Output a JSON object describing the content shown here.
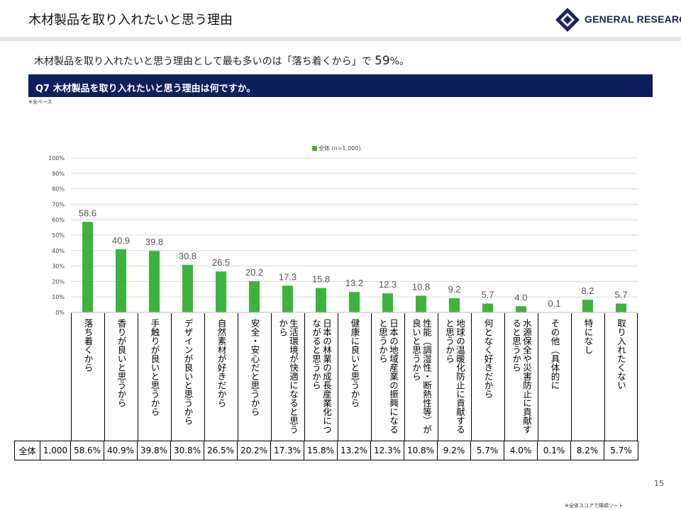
{
  "header": {
    "title": "木材製品を取り入れたいと思う理由",
    "logo_text": "GENERAL RESEARCH"
  },
  "summary": {
    "text_before": "木材製品を取り入れたいと思う理由として最も多いのは「落ち着くから」で",
    "highlight": "59",
    "text_after": "%。"
  },
  "question": "Q7 木材製品を取り入れたいと思う理由は何ですか。",
  "base_note": "※全ベース",
  "legend_label": "全体 (n=1,000)",
  "table": {
    "row_label": "全体",
    "n": "1,000",
    "cells": [
      "58.6%",
      "40.9%",
      "39.8%",
      "30.8%",
      "26.5%",
      "20.2%",
      "17.3%",
      "15.8%",
      "13.2%",
      "12.3%",
      "10.8%",
      "9.2%",
      "5.7%",
      "4.0%",
      "0.1%",
      "8.2%",
      "5.7%"
    ]
  },
  "page_number": "15",
  "footer_note": "※全体スコアで降順ソート",
  "colors": {
    "bar": "#3cb43c",
    "navy": "#0f1f5c",
    "grid": "#d9d9d9"
  },
  "chart_data": {
    "type": "bar",
    "categories": [
      "落ち着くから",
      "香りが良いと思うから",
      "手触りが良いと思うから",
      "デザインが良いと思うから",
      "自然素材が好きだから",
      "安全・安心だと思うから",
      "生活環境が快適になると思うから",
      "日本の林業の成長産業化につながると思うから",
      "健康に良いと思うから",
      "日本の地域産業の振興になると思うから",
      "性能（調湿性・断熱性等）が良いと思うから",
      "地球の温暖化防止に貢献すると思うから",
      "何となく好きだから",
      "水源保全や災害防止に貢献すると思うから",
      "その他（具体的に",
      "特になし",
      "取り入れたくない"
    ],
    "series": [
      {
        "name": "全体 (n=1,000)",
        "values": [
          58.6,
          40.9,
          39.8,
          30.8,
          26.5,
          20.2,
          17.3,
          15.8,
          13.2,
          12.3,
          10.8,
          9.2,
          5.7,
          4.0,
          0.1,
          8.2,
          5.7
        ]
      }
    ],
    "data_labels": [
      "58.6",
      "40.9",
      "39.8",
      "30.8",
      "26.5",
      "20.2",
      "17.3",
      "15.8",
      "13.2",
      "12.3",
      "10.8",
      "9.2",
      "5.7",
      "4.0",
      "0.1",
      "8.2",
      "5.7"
    ],
    "y_ticks": [
      "0%",
      "10%",
      "20%",
      "30%",
      "40%",
      "50%",
      "60%",
      "70%",
      "80%",
      "90%",
      "100%"
    ],
    "ylim": [
      0,
      100
    ],
    "grid": true,
    "legend_position": "top-center"
  }
}
